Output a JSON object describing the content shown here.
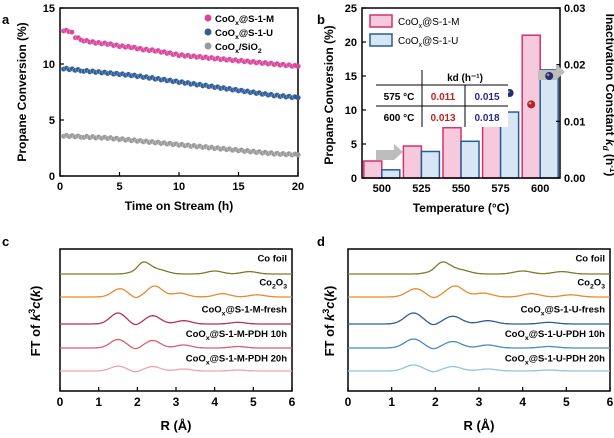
{
  "panels": {
    "a": {
      "letter": "a"
    },
    "b": {
      "letter": "b"
    },
    "c": {
      "letter": "c"
    },
    "d": {
      "letter": "d"
    }
  },
  "colors": {
    "m": "#d9479c",
    "u": "#2f5d99",
    "sio2": "#9a9a9a",
    "bar_m_fill": "#f7c9dd",
    "bar_m_edge": "#d6306f",
    "bar_u_fill": "#d6e6f5",
    "bar_u_edge": "#2a5c98",
    "kd_m": "#b32424",
    "kd_u": "#2a2a6e",
    "co_foil": "#7d7a2c",
    "co2o3": "#e98a2f",
    "m_fresh": "#b8314d",
    "m_10h": "#d95e6e",
    "m_20h": "#f0a3aa",
    "u_fresh": "#2a5f92",
    "u_10h": "#4a8bc2",
    "u_20h": "#8ec4df"
  },
  "table": {
    "kd_header": "kd (h⁻¹)",
    "rows": [
      {
        "temp": "575 °C",
        "m": "0.011",
        "u": "0.015"
      },
      {
        "temp": "600 °C",
        "m": "0.013",
        "u": "0.018"
      }
    ]
  },
  "chart_data": [
    {
      "panel": "a",
      "type": "scatter",
      "xlabel": "Time on Stream (h)",
      "ylabel": "Propane Conversion (%)",
      "xlim": [
        0,
        20
      ],
      "ylim": [
        0,
        15
      ],
      "xticks": [
        "0",
        "5",
        "10",
        "15",
        "20"
      ],
      "yticks": [
        "0",
        "5",
        "10",
        "15"
      ],
      "legend_position": "top-right",
      "series": [
        {
          "name": "CoOx@S-1-M",
          "points": [
            [
              0.3,
              13.0
            ],
            [
              1,
              12.9
            ],
            [
              1.3,
              12.4
            ],
            [
              2,
              12.1
            ],
            [
              3,
              11.9
            ],
            [
              4,
              11.8
            ],
            [
              5,
              11.6
            ],
            [
              6,
              11.5
            ],
            [
              7,
              11.3
            ],
            [
              8,
              11.2
            ],
            [
              9,
              11.0
            ],
            [
              10,
              10.8
            ],
            [
              11,
              10.7
            ],
            [
              12,
              10.6
            ],
            [
              13,
              10.5
            ],
            [
              14,
              10.4
            ],
            [
              15,
              10.3
            ],
            [
              16,
              10.2
            ],
            [
              17,
              10.1
            ],
            [
              18,
              10.0
            ],
            [
              19,
              9.9
            ],
            [
              20,
              9.8
            ]
          ]
        },
        {
          "name": "CoOx@S-1-U",
          "points": [
            [
              0.3,
              9.6
            ],
            [
              2,
              9.4
            ],
            [
              4,
              9.2
            ],
            [
              6,
              9.0
            ],
            [
              8,
              8.7
            ],
            [
              10,
              8.4
            ],
            [
              12,
              8.1
            ],
            [
              14,
              7.8
            ],
            [
              16,
              7.5
            ],
            [
              18,
              7.2
            ],
            [
              20,
              7.0
            ]
          ]
        },
        {
          "name": "CoOx/SiO2",
          "points": [
            [
              0.3,
              3.6
            ],
            [
              2,
              3.5
            ],
            [
              4,
              3.4
            ],
            [
              6,
              3.2
            ],
            [
              8,
              3.0
            ],
            [
              10,
              2.8
            ],
            [
              12,
              2.6
            ],
            [
              14,
              2.4
            ],
            [
              16,
              2.2
            ],
            [
              18,
              2.0
            ],
            [
              20,
              1.9
            ]
          ]
        }
      ]
    },
    {
      "panel": "b",
      "type": "bar",
      "xlabel": "Temperature (°C)",
      "ylabel": "Propane Conversion (%)",
      "y2label": "Inactivation Constant kd (h⁻¹)",
      "categories": [
        "500",
        "525",
        "550",
        "575",
        "600"
      ],
      "ylim": [
        0,
        25
      ],
      "yticks": [
        "0",
        "5",
        "10",
        "15",
        "20",
        "25"
      ],
      "y2lim": [
        0,
        0.03
      ],
      "y2ticks": [
        "0.00",
        "0.01",
        "0.02",
        "0.03"
      ],
      "series": [
        {
          "name": "CoOx@S-1-M",
          "values": [
            2.5,
            4.7,
            7.4,
            13.0,
            21.0
          ]
        },
        {
          "name": "CoOx@S-1-U",
          "values": [
            1.2,
            3.9,
            5.4,
            9.7,
            15.9
          ]
        }
      ],
      "kd_points": {
        "categories": [
          "575",
          "600"
        ],
        "m": [
          0.011,
          0.013
        ],
        "u": [
          0.015,
          0.018
        ]
      }
    },
    {
      "panel": "c",
      "type": "line",
      "xlabel": "R (Å)",
      "ylabel": "FT of k3c(k)",
      "xlim": [
        0,
        6
      ],
      "xticks": [
        "0",
        "1",
        "2",
        "3",
        "4",
        "5",
        "6"
      ],
      "series": [
        {
          "name": "Co foil",
          "peaks": [
            [
              2.15,
              1.0
            ],
            [
              2.6,
              0.3
            ],
            [
              4.0,
              0.25
            ],
            [
              4.9,
              0.2
            ]
          ]
        },
        {
          "name": "Co2O3",
          "peaks": [
            [
              1.55,
              0.75
            ],
            [
              2.45,
              1.0
            ],
            [
              3.1,
              0.35
            ],
            [
              4.2,
              0.3
            ],
            [
              5.1,
              0.2
            ]
          ]
        },
        {
          "name": "CoOx@S-1-M-fresh",
          "peaks": [
            [
              1.5,
              1.0
            ],
            [
              2.4,
              0.75
            ],
            [
              3.2,
              0.3
            ],
            [
              4.6,
              0.15
            ]
          ]
        },
        {
          "name": "CoOx@S-1-M-PDH 10h",
          "peaks": [
            [
              1.5,
              0.85
            ],
            [
              2.4,
              0.75
            ],
            [
              3.2,
              0.3
            ],
            [
              4.6,
              0.15
            ]
          ]
        },
        {
          "name": "CoOx@S-1-M-PDH 20h",
          "peaks": [
            [
              1.5,
              0.6
            ],
            [
              2.4,
              0.55
            ],
            [
              3.2,
              0.25
            ],
            [
              4.6,
              0.12
            ]
          ]
        }
      ]
    },
    {
      "panel": "d",
      "type": "line",
      "xlabel": "R (Å)",
      "ylabel": "FT of k3c(k)",
      "xlim": [
        0,
        6
      ],
      "xticks": [
        "0",
        "1",
        "2",
        "3",
        "4",
        "5",
        "6"
      ],
      "series": [
        {
          "name": "Co foil",
          "peaks": [
            [
              2.15,
              1.0
            ],
            [
              2.6,
              0.3
            ],
            [
              4.0,
              0.25
            ],
            [
              4.9,
              0.2
            ]
          ]
        },
        {
          "name": "Co2O3",
          "peaks": [
            [
              1.55,
              0.75
            ],
            [
              2.45,
              1.0
            ],
            [
              3.1,
              0.35
            ],
            [
              4.2,
              0.3
            ],
            [
              5.1,
              0.2
            ]
          ]
        },
        {
          "name": "CoOx@S-1-U-fresh",
          "peaks": [
            [
              1.5,
              1.0
            ],
            [
              2.4,
              0.7
            ],
            [
              3.2,
              0.3
            ],
            [
              4.6,
              0.15
            ]
          ]
        },
        {
          "name": "CoOx@S-1-U-PDH 10h",
          "peaks": [
            [
              1.5,
              0.9
            ],
            [
              2.4,
              0.65
            ],
            [
              3.2,
              0.3
            ],
            [
              4.6,
              0.15
            ]
          ]
        },
        {
          "name": "CoOx@S-1-U-PDH 20h",
          "peaks": [
            [
              1.5,
              0.75
            ],
            [
              2.4,
              0.55
            ],
            [
              3.2,
              0.25
            ],
            [
              4.6,
              0.12
            ]
          ]
        }
      ]
    }
  ]
}
